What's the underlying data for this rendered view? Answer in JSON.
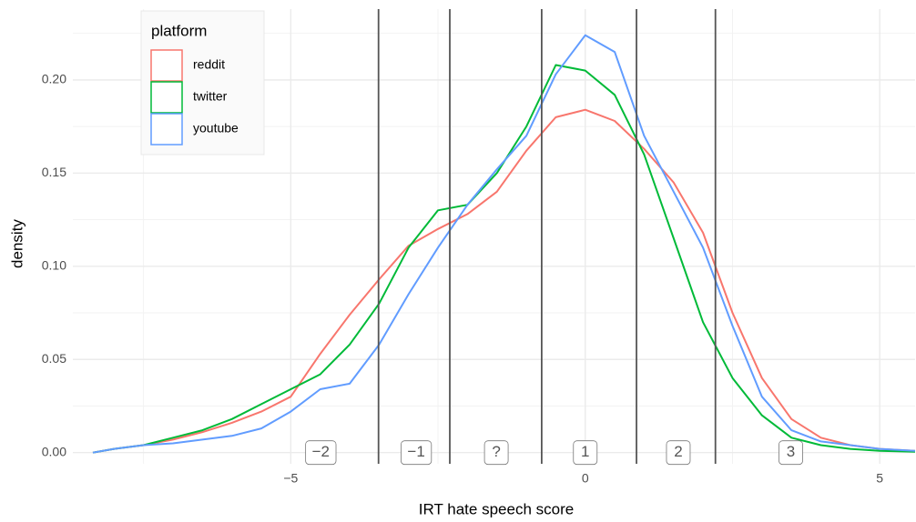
{
  "chart_data": {
    "type": "line",
    "x_label": "IRT hate speech score",
    "y_label": "density",
    "legend_title": "platform",
    "legend_position": "top-left",
    "grid": true,
    "xlim": [
      -8.7,
      5.6
    ],
    "ylim": [
      -0.006,
      0.238
    ],
    "xticks": [
      {
        "value": -5,
        "label": "−5"
      },
      0,
      5
    ],
    "yticks": [
      {
        "value": 0,
        "label": "0.00"
      },
      {
        "value": 0.05,
        "label": "0.05"
      },
      {
        "value": 0.1,
        "label": "0.10"
      },
      {
        "value": 0.15,
        "label": "0.15"
      },
      {
        "value": 0.2,
        "label": "0.20"
      }
    ],
    "x_minor_ticks": [
      -7.5,
      -2.5,
      2.5
    ],
    "y_minor_ticks": [
      0.025,
      0.075,
      0.125,
      0.175,
      0.225
    ],
    "vlines": [
      -3.51,
      -2.3,
      -0.74,
      0.87,
      2.21
    ],
    "vline_color": "#555555",
    "annotations": [
      {
        "x": -4.49,
        "y": 0,
        "label": "−2"
      },
      {
        "x": -2.87,
        "y": 0,
        "label": "−1"
      },
      {
        "x": -1.51,
        "y": 0,
        "label": "?"
      },
      {
        "x": 0,
        "y": 0,
        "label": "1"
      },
      {
        "x": 1.58,
        "y": 0,
        "label": "2"
      },
      {
        "x": 3.49,
        "y": 0,
        "label": "3"
      }
    ],
    "x": [
      -8.36,
      -8,
      -7.5,
      -7,
      -6.5,
      -6,
      -5.5,
      -5,
      -4.5,
      -4,
      -3.5,
      -3,
      -2.5,
      -2,
      -1.5,
      -1,
      -0.5,
      0,
      0.5,
      1,
      1.5,
      2,
      2.5,
      3,
      3.5,
      4,
      4.5,
      5,
      5.6
    ],
    "series": [
      {
        "name": "reddit",
        "color": "#F8766D",
        "values": [
          0,
          0.002,
          0.004,
          0.007,
          0.011,
          0.016,
          0.022,
          0.03,
          0.053,
          0.074,
          0.093,
          0.111,
          0.12,
          0.128,
          0.14,
          0.162,
          0.18,
          0.184,
          0.178,
          0.163,
          0.145,
          0.118,
          0.075,
          0.04,
          0.018,
          0.008,
          0.004,
          0.002,
          0.001
        ]
      },
      {
        "name": "twitter",
        "color": "#00BA38",
        "values": [
          0,
          0.002,
          0.004,
          0.008,
          0.012,
          0.018,
          0.026,
          0.034,
          0.042,
          0.058,
          0.08,
          0.11,
          0.13,
          0.133,
          0.15,
          0.175,
          0.208,
          0.205,
          0.192,
          0.16,
          0.115,
          0.07,
          0.04,
          0.02,
          0.008,
          0.004,
          0.002,
          0.001,
          0.0005
        ]
      },
      {
        "name": "youtube",
        "color": "#619CFF",
        "values": [
          0,
          0.002,
          0.004,
          0.005,
          0.007,
          0.009,
          0.013,
          0.022,
          0.034,
          0.037,
          0.058,
          0.085,
          0.11,
          0.133,
          0.152,
          0.17,
          0.203,
          0.224,
          0.215,
          0.17,
          0.14,
          0.11,
          0.068,
          0.03,
          0.012,
          0.006,
          0.004,
          0.002,
          0.001
        ]
      }
    ]
  }
}
